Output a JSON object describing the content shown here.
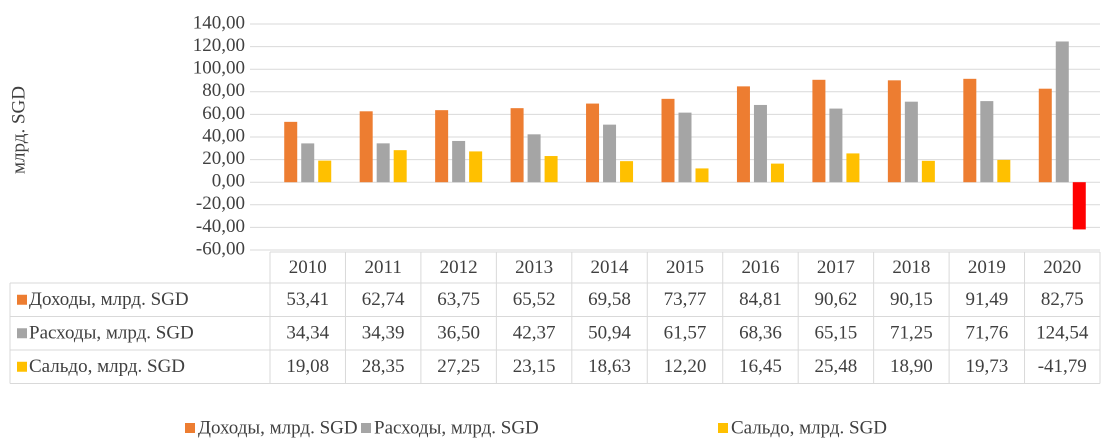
{
  "chart_data": {
    "type": "bar",
    "y_label": "млрд. SGD",
    "categories": [
      "2010",
      "2011",
      "2012",
      "2013",
      "2014",
      "2015",
      "2016",
      "2017",
      "2018",
      "2019",
      "2020"
    ],
    "series": [
      {
        "name": "Доходы, млрд. SGD",
        "color": "#ED7D31",
        "values": [
          53.41,
          62.74,
          63.75,
          65.52,
          69.58,
          73.77,
          84.81,
          90.62,
          90.15,
          91.49,
          82.75
        ],
        "value_labels": [
          "53,41",
          "62,74",
          "63,75",
          "65,52",
          "69,58",
          "73,77",
          "84,81",
          "90,62",
          "90,15",
          "91,49",
          "82,75"
        ]
      },
      {
        "name": "Расходы, млрд. SGD",
        "color": "#A5A5A5",
        "values": [
          34.34,
          34.39,
          36.5,
          42.37,
          50.94,
          61.57,
          68.36,
          65.15,
          71.25,
          71.76,
          124.54
        ],
        "value_labels": [
          "34,34",
          "34,39",
          "36,50",
          "42,37",
          "50,94",
          "61,57",
          "68,36",
          "65,15",
          "71,25",
          "71,76",
          "124,54"
        ]
      },
      {
        "name": "Сальдо, млрд. SGD",
        "color": "#FFC000",
        "point_colors": {
          "10": "#FF0000"
        },
        "values": [
          19.08,
          28.35,
          27.25,
          23.15,
          18.63,
          12.2,
          16.45,
          25.48,
          18.9,
          19.73,
          -41.79
        ],
        "value_labels": [
          "19,08",
          "28,35",
          "27,25",
          "23,15",
          "18,63",
          "12,20",
          "16,45",
          "25,48",
          "18,90",
          "19,73",
          "-41,79"
        ]
      }
    ],
    "ylim": [
      -60,
      140
    ],
    "yticks": [
      {
        "value": -60,
        "label": "-60,00"
      },
      {
        "value": -40,
        "label": "-40,00"
      },
      {
        "value": -20,
        "label": "-20,00"
      },
      {
        "value": 0,
        "label": "0,00"
      },
      {
        "value": 20,
        "label": "20,00"
      },
      {
        "value": 40,
        "label": "40,00"
      },
      {
        "value": 60,
        "label": "60,00"
      },
      {
        "value": 80,
        "label": "80,00"
      },
      {
        "value": 100,
        "label": "100,00"
      },
      {
        "value": 120,
        "label": "120,00"
      },
      {
        "value": 140,
        "label": "140,00"
      }
    ],
    "grid": true,
    "legend": "bottom",
    "data_table": true
  }
}
